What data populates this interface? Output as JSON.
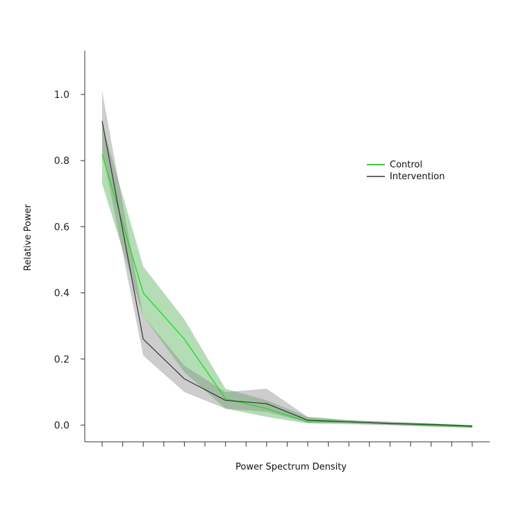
{
  "chart_data": {
    "type": "line",
    "title": "",
    "xlabel": "Power Spectrum Density",
    "ylabel": "Relative Power",
    "x": [
      1,
      2,
      3,
      4,
      5,
      6,
      7,
      8,
      9,
      10,
      11,
      12,
      13,
      14,
      15,
      16,
      17,
      18,
      19
    ],
    "ylim": [
      -0.05,
      1.13
    ],
    "yticks": [
      0.0,
      0.2,
      0.4,
      0.6,
      0.8,
      1.0
    ],
    "ytick_labels": [
      "0.0",
      "0.2",
      "0.4",
      "0.6",
      "0.8",
      "1.0"
    ],
    "grid": false,
    "legend_position": "top-right",
    "series": [
      {
        "name": "Control",
        "color": "#22dd22",
        "band_color": "#4caf50",
        "x": [
          1,
          3,
          5,
          7,
          9,
          11,
          13,
          15,
          17,
          19
        ],
        "values": [
          0.82,
          0.4,
          0.26,
          0.08,
          0.05,
          0.01,
          0.01,
          0.005,
          0.0,
          -0.005
        ],
        "upper": [
          0.91,
          0.48,
          0.32,
          0.11,
          0.075,
          0.025,
          0.015,
          0.01,
          0.005,
          0.0
        ],
        "lower": [
          0.73,
          0.33,
          0.16,
          0.05,
          0.025,
          0.005,
          0.003,
          0.0,
          -0.005,
          -0.008
        ]
      },
      {
        "name": "Intervention",
        "color": "#333333",
        "band_color": "#888888",
        "x": [
          1,
          3,
          5,
          7,
          9,
          11,
          13,
          15,
          17,
          19
        ],
        "values": [
          0.92,
          0.26,
          0.14,
          0.075,
          0.065,
          0.015,
          0.01,
          0.005,
          0.002,
          -0.003
        ],
        "upper": [
          1.01,
          0.33,
          0.18,
          0.1,
          0.11,
          0.025,
          0.015,
          0.01,
          0.005,
          0.0
        ],
        "lower": [
          0.83,
          0.21,
          0.1,
          0.05,
          0.04,
          0.008,
          0.005,
          0.0,
          -0.004,
          -0.008
        ]
      }
    ]
  }
}
